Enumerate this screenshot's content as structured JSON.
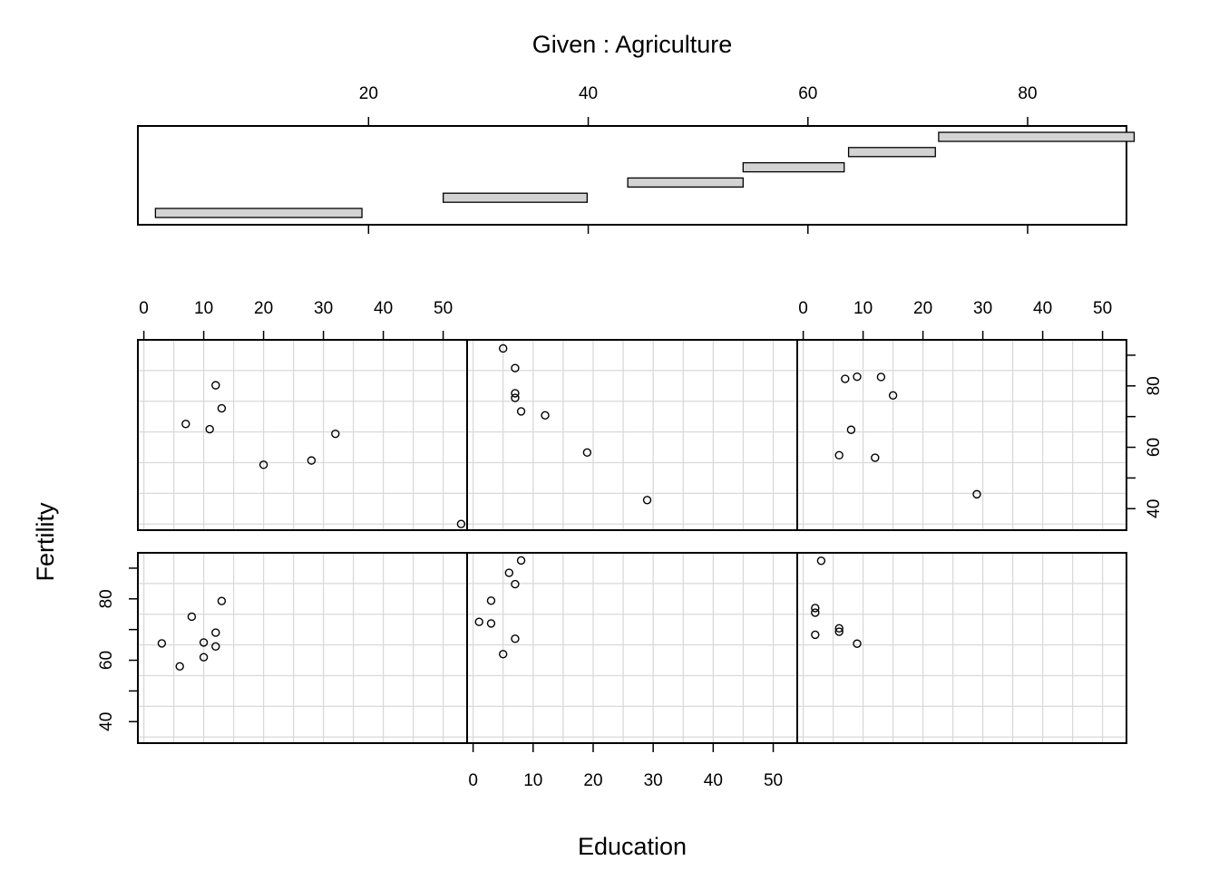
{
  "chart_data": {
    "type": "coplot",
    "title": "Given : Agriculture",
    "xlabel": "Education",
    "ylabel": "Fertility",
    "given": {
      "variable": "Agriculture",
      "ticks": [
        20,
        40,
        60,
        80
      ],
      "range": [
        -1,
        89
      ],
      "intervals": [
        [
          0.6,
          19.4
        ],
        [
          26.8,
          39.9
        ],
        [
          43.6,
          54.1
        ],
        [
          54.1,
          63.3
        ],
        [
          63.7,
          71.6
        ],
        [
          71.9,
          89.7
        ]
      ]
    },
    "x_ticks": [
      0,
      10,
      20,
      30,
      40,
      50
    ],
    "xlim": [
      -1,
      54
    ],
    "y_ticks": [
      40,
      60,
      80
    ],
    "ylim": [
      33,
      95
    ],
    "panels": [
      {
        "points": [
          {
            "x": 3,
            "y": 65.5
          },
          {
            "x": 6,
            "y": 58
          },
          {
            "x": 8,
            "y": 74.2
          },
          {
            "x": 10,
            "y": 61
          },
          {
            "x": 10,
            "y": 65.8
          },
          {
            "x": 12,
            "y": 69
          },
          {
            "x": 12,
            "y": 64.5
          },
          {
            "x": 13,
            "y": 79.3
          }
        ]
      },
      {
        "points": [
          {
            "x": 1,
            "y": 72.5
          },
          {
            "x": 3,
            "y": 72
          },
          {
            "x": 3,
            "y": 79.4
          },
          {
            "x": 5,
            "y": 62
          },
          {
            "x": 6,
            "y": 88.5
          },
          {
            "x": 7,
            "y": 84.8
          },
          {
            "x": 7,
            "y": 67
          },
          {
            "x": 8,
            "y": 92.5
          }
        ]
      },
      {
        "points": [
          {
            "x": 2,
            "y": 77
          },
          {
            "x": 2,
            "y": 75.5
          },
          {
            "x": 2,
            "y": 68.3
          },
          {
            "x": 3,
            "y": 92.4
          },
          {
            "x": 6,
            "y": 70.4
          },
          {
            "x": 6,
            "y": 69.3
          },
          {
            "x": 9,
            "y": 65.4
          }
        ]
      },
      {
        "points": [
          {
            "x": 7,
            "y": 67.6
          },
          {
            "x": 11,
            "y": 65.9
          },
          {
            "x": 12,
            "y": 80.2
          },
          {
            "x": 13,
            "y": 72.7
          },
          {
            "x": 20,
            "y": 54.3
          },
          {
            "x": 28,
            "y": 55.7
          },
          {
            "x": 32,
            "y": 64.4
          },
          {
            "x": 53,
            "y": 35
          }
        ]
      },
      {
        "points": [
          {
            "x": 5,
            "y": 92.2
          },
          {
            "x": 7,
            "y": 85.8
          },
          {
            "x": 7,
            "y": 77.6
          },
          {
            "x": 7,
            "y": 76.1
          },
          {
            "x": 8,
            "y": 71.7
          },
          {
            "x": 12,
            "y": 70.4
          },
          {
            "x": 19,
            "y": 58.3
          },
          {
            "x": 29,
            "y": 42.8
          }
        ]
      },
      {
        "points": [
          {
            "x": 6,
            "y": 57.4
          },
          {
            "x": 7,
            "y": 82.3
          },
          {
            "x": 8,
            "y": 65.7
          },
          {
            "x": 9,
            "y": 83
          },
          {
            "x": 12,
            "y": 56.6
          },
          {
            "x": 13,
            "y": 82.9
          },
          {
            "x": 15,
            "y": 76.9
          },
          {
            "x": 29,
            "y": 44.7
          }
        ]
      }
    ]
  }
}
